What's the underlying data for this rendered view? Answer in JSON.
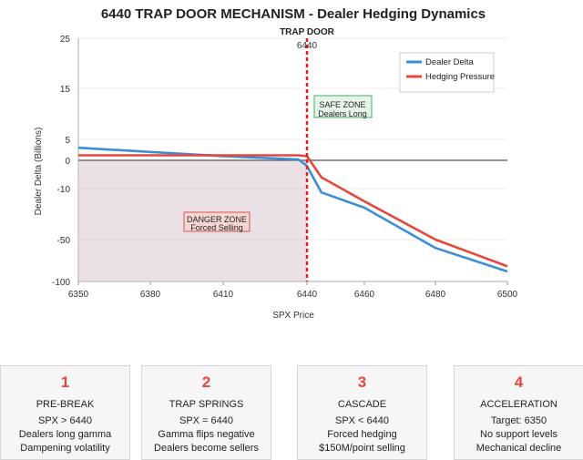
{
  "chart_data": {
    "type": "line",
    "title": "6440 TRAP DOOR MECHANISM - Dealer Hedging Dynamics",
    "xlabel": "SPX Price",
    "ylabel": "Dealer Delta (Billions)",
    "x_ticks": [
      6350,
      6380,
      6410,
      6440,
      6460,
      6480,
      6500
    ],
    "y_ticks": [
      25,
      15,
      5,
      0,
      -10,
      -50,
      -100
    ],
    "series": [
      {
        "name": "Dealer Delta",
        "color": "#3a8fd6",
        "points": [
          [
            6350,
            3
          ],
          [
            6380,
            2
          ],
          [
            6410,
            1
          ],
          [
            6437,
            0.2
          ],
          [
            6440,
            -2
          ],
          [
            6445,
            -13
          ],
          [
            6460,
            -25
          ],
          [
            6480,
            -60
          ],
          [
            6500,
            -88
          ]
        ]
      },
      {
        "name": "Hedging Pressure",
        "color": "#e8463b",
        "points": [
          [
            6350,
            1.2
          ],
          [
            6380,
            1.2
          ],
          [
            6410,
            1.2
          ],
          [
            6437,
            1.2
          ],
          [
            6440,
            1
          ],
          [
            6445,
            -6
          ],
          [
            6460,
            -20
          ],
          [
            6480,
            -50
          ],
          [
            6500,
            -82
          ]
        ]
      }
    ],
    "reference_line": {
      "label": "TRAP DOOR",
      "value_label": "6440",
      "x": 6440,
      "color": "#e02020"
    },
    "annotations": {
      "safe_zone": [
        "SAFE ZONE",
        "Dealers Long"
      ],
      "danger_zone": [
        "DANGER ZONE",
        "Forced Selling"
      ]
    },
    "legend_position": "top-right",
    "zero_line": 0
  },
  "stages": [
    {
      "number": "1",
      "title": "PRE-BREAK",
      "lines": [
        "SPX > 6440",
        "Dealers long gamma",
        "Dampening volatility"
      ]
    },
    {
      "number": "2",
      "title": "TRAP SPRINGS",
      "lines": [
        "SPX = 6440",
        "Gamma flips negative",
        "Dealers become sellers"
      ]
    },
    {
      "number": "3",
      "title": "CASCADE",
      "lines": [
        "SPX < 6440",
        "Forced hedging",
        "$150M/point selling"
      ]
    },
    {
      "number": "4",
      "title": "ACCELERATION",
      "lines": [
        "Target: 6350",
        "No support levels",
        "Mechanical decline"
      ]
    }
  ]
}
